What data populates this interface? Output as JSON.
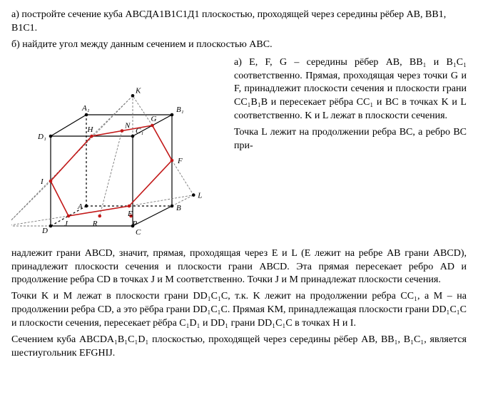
{
  "problem": {
    "a": "а) постройте сечение куба АВСДА1В1С1Д1 плоскостью, проходящей через середины рёбер АВ, ВВ1, В1С1.",
    "b": "б) найдите угол между данным сечением и плоскостью АВС."
  },
  "right": {
    "p1": "а) E, F, G – середины рёбер AB, BB₁ и B₁C₁ соответственно. Прямая, проходящая через точки G и F, принадлежит плоскости сечения и плоскости грани CC₁B₁B и пересекает рёбра CC₁ и BC в точках K и L соответственно. K и L лежат в плоскости сечения.",
    "p2": "Точка L лежит на продолжении ребра BC, а ребро BC при-"
  },
  "bottom": {
    "p1": "надлежит грани ABCD, значит, прямая, проходящая через E и L (E лежит на ребре AB грани ABCD), принадлежит плоскости сечения и плоскости грани ABCD. Эта прямая пересекает ребро AD и продолжение ребра CD в точках J и M соответственно. Точки J и M принадлежат плоскости сечения.",
    "p2": "Точки K и M лежат в плоскости грани DD₁C₁C, т.к. K лежит на продолжении ребра CC₁, а M – на продолжении ребра CD, а это рёбра грани DD₁C₁C. Прямая KM, принадлежащая плоскости грани DD₁C₁C и плоскости сечения, пересекает рёбра C₁D₁ и DD₁ грани DD₁C₁C в точках H и I.",
    "p3": "Сечением куба ABCDA₁B₁C₁D₁ плоскостью, проходящей через середины рёбер AB, BB₁, B₁C₁, является шестиугольник EFGHIJ."
  },
  "diagram": {
    "labels": {
      "A": "A",
      "B": "B",
      "C": "C",
      "D": "D",
      "A1": "A₁",
      "B1": "B₁",
      "C1": "C₁",
      "D1": "D₁",
      "E": "E",
      "F": "F",
      "G": "G",
      "H": "H",
      "I": "I",
      "J": "J",
      "K": "K",
      "L": "L",
      "M": "M",
      "N": "N",
      "P": "P",
      "R": "R"
    },
    "colors": {
      "cube_edge": "#000000",
      "cube_hidden": "#000000",
      "section": "#c21818",
      "aux": "#7a7a7a",
      "point": "#c21818",
      "point_black": "#000000",
      "label": "#000000"
    },
    "stroke": {
      "edge_w": 1.2,
      "hidden_dash": "3,3",
      "section_w": 1.6,
      "aux_w": 0.9,
      "aux_dash": "3,2"
    },
    "font_size": 11
  }
}
